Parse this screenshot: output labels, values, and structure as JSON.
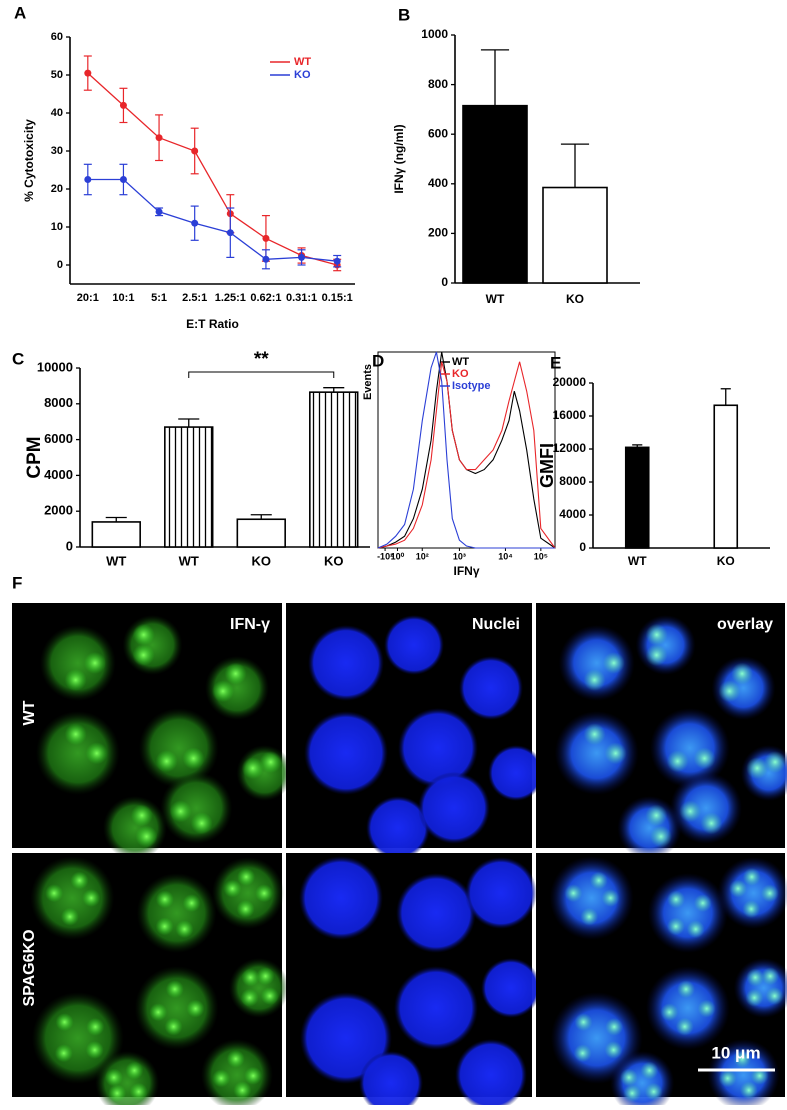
{
  "chart_data": [
    {
      "panel": "A",
      "type": "line",
      "x_label": "E:T Ratio",
      "y_label": "% Cytotoxicity",
      "categories": [
        "20:1",
        "10:1",
        "5:1",
        "2.5:1",
        "1.25:1",
        "0.62:1",
        "0.31:1",
        "0.15:1"
      ],
      "ylim": [
        -5,
        60
      ],
      "yticks": [
        0,
        10,
        20,
        30,
        40,
        50,
        60
      ],
      "legend": "upper right",
      "series": [
        {
          "name": "WT",
          "color": "#e8262a",
          "values": [
            50.5,
            42,
            33.5,
            30,
            13.5,
            7,
            2.5,
            0
          ],
          "errors": [
            4.5,
            4.5,
            6,
            6,
            5,
            6,
            2,
            1.5
          ]
        },
        {
          "name": "KO",
          "color": "#2b3fd6",
          "values": [
            22.5,
            22.5,
            14,
            11,
            8.5,
            1.5,
            2,
            1
          ],
          "errors": [
            4,
            4,
            1,
            4.5,
            6.5,
            2.5,
            2,
            1.5
          ]
        }
      ]
    },
    {
      "panel": "B",
      "type": "bar",
      "y_label": "IFNγ (ng/ml)",
      "categories": [
        "WT",
        "KO"
      ],
      "values": [
        715,
        385
      ],
      "errors": [
        225,
        175
      ],
      "colors": [
        "#000000",
        "#ffffff"
      ],
      "ylim": [
        0,
        1000
      ],
      "yticks": [
        0,
        200,
        400,
        600,
        800,
        1000
      ]
    },
    {
      "panel": "C",
      "type": "bar",
      "y_label": "CPM",
      "categories": [
        "WT",
        "WT",
        "KO",
        "KO"
      ],
      "values": [
        1400,
        6700,
        1550,
        8650
      ],
      "errors": [
        250,
        450,
        250,
        250
      ],
      "colors": [
        "#ffffff",
        "#ffffff",
        "#ffffff",
        "#ffffff"
      ],
      "hatch": [
        false,
        true,
        false,
        true
      ],
      "annotation": "**",
      "ylim": [
        0,
        10000
      ],
      "yticks": [
        0,
        2000,
        4000,
        6000,
        8000,
        10000
      ]
    },
    {
      "panel": "D",
      "type": "line",
      "x_label": "IFNγ",
      "y_label": "Events",
      "frame": true,
      "legend": "upper left",
      "x": [
        0,
        5,
        10,
        15,
        20,
        25,
        30,
        33,
        36,
        39,
        42,
        46,
        50,
        55,
        60,
        65,
        70,
        74,
        77,
        80,
        84,
        88,
        92,
        100
      ],
      "xlim": [
        0,
        100
      ],
      "ylim": [
        0,
        100
      ],
      "xticks": [
        {
          "value": 4,
          "label": "-10²"
        },
        {
          "value": 11,
          "label": "10⁰"
        },
        {
          "value": 25,
          "label": "10²"
        },
        {
          "value": 46,
          "label": "10³"
        },
        {
          "value": 72,
          "label": "10⁴"
        },
        {
          "value": 92,
          "label": "10⁵"
        }
      ],
      "series": [
        {
          "name": "WT",
          "color": "#000000",
          "values": [
            0,
            1,
            3,
            6,
            15,
            30,
            55,
            80,
            100,
            85,
            60,
            45,
            40,
            38,
            40,
            45,
            55,
            65,
            80,
            70,
            50,
            25,
            5,
            0
          ]
        },
        {
          "name": "KO",
          "color": "#e8262a",
          "values": [
            0,
            1,
            2,
            4,
            10,
            22,
            45,
            70,
            95,
            85,
            60,
            45,
            40,
            40,
            45,
            50,
            60,
            75,
            85,
            95,
            80,
            60,
            10,
            0
          ]
        },
        {
          "name": "Isotype",
          "color": "#2b3fd6",
          "values": [
            0,
            2,
            6,
            12,
            30,
            65,
            92,
            100,
            85,
            45,
            15,
            4,
            1,
            0,
            0,
            0,
            0,
            0,
            0,
            0,
            0,
            0,
            0,
            0
          ]
        }
      ]
    },
    {
      "panel": "E",
      "type": "bar",
      "y_label": "GMFI",
      "categories": [
        "WT",
        "KO"
      ],
      "values": [
        12200,
        17300
      ],
      "errors": [
        300,
        2000
      ],
      "colors": [
        "#000000",
        "#ffffff"
      ],
      "ylim": [
        0,
        20000
      ],
      "yticks": [
        0,
        4000,
        8000,
        12000,
        16000,
        20000
      ]
    }
  ],
  "micrograph": {
    "panel": "F",
    "columns": [
      "IFN-γ",
      "Nuclei",
      "overlay"
    ],
    "rows": [
      "WT",
      "SPAG6KO"
    ],
    "scale_bar": "10 μm"
  }
}
